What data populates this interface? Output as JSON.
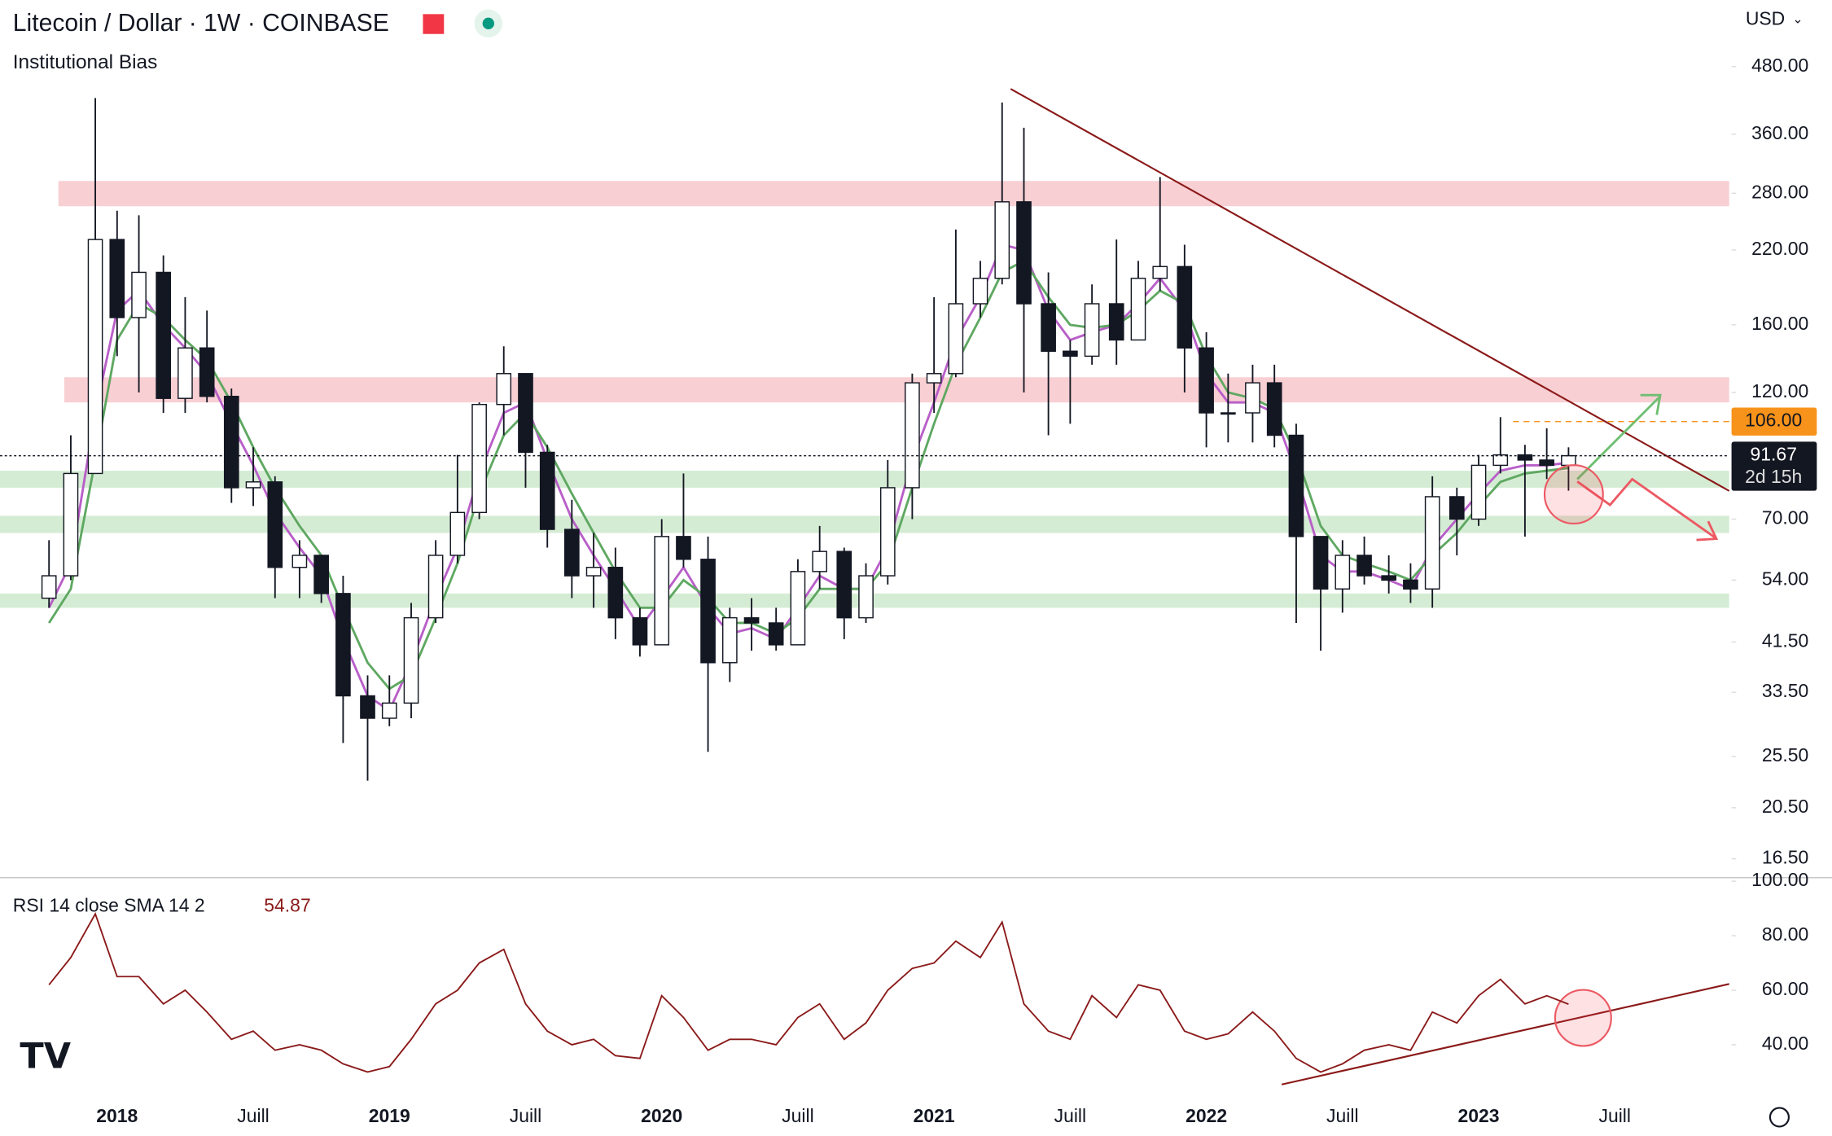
{
  "chart_data": {
    "type": "candlestick",
    "title": "Litecoin / Dollar · 1W · COINBASE",
    "subtitle": "Institutional Bias",
    "currency": "USD",
    "x": [
      2017.75,
      2017.83,
      2017.92,
      2018.0,
      2018.08,
      2018.17,
      2018.25,
      2018.33,
      2018.42,
      2018.5,
      2018.58,
      2018.67,
      2018.75,
      2018.83,
      2018.92,
      2019.0,
      2019.08,
      2019.17,
      2019.25,
      2019.33,
      2019.42,
      2019.5,
      2019.58,
      2019.67,
      2019.75,
      2019.83,
      2019.92,
      2020.0,
      2020.08,
      2020.17,
      2020.25,
      2020.33,
      2020.42,
      2020.5,
      2020.58,
      2020.67,
      2020.75,
      2020.83,
      2020.92,
      2021.0,
      2021.08,
      2021.17,
      2021.25,
      2021.33,
      2021.42,
      2021.5,
      2021.58,
      2021.67,
      2021.75,
      2021.83,
      2021.92,
      2022.0,
      2022.08,
      2022.17,
      2022.25,
      2022.33,
      2022.42,
      2022.5,
      2022.58,
      2022.67,
      2022.75,
      2022.83,
      2022.92,
      2023.0,
      2023.08,
      2023.17,
      2023.25,
      2023.33
    ],
    "open": [
      50,
      55,
      85,
      230,
      165,
      200,
      117,
      145,
      118,
      80,
      82,
      57,
      60,
      51,
      33,
      30,
      32,
      46,
      60,
      72,
      114,
      130,
      93,
      67,
      55,
      57,
      46,
      41,
      65,
      59,
      38,
      46,
      45,
      41,
      56,
      61,
      46,
      55,
      80,
      125,
      130,
      175,
      195,
      270,
      175,
      143,
      140,
      175,
      150,
      195,
      205,
      145,
      110,
      110,
      125,
      100,
      65,
      52,
      60,
      55,
      54,
      52,
      77,
      70,
      88,
      92,
      90,
      88
    ],
    "high": [
      64,
      100,
      420,
      260,
      255,
      215,
      180,
      170,
      122,
      95,
      84,
      64,
      60,
      55,
      36,
      36,
      49,
      64,
      92,
      115,
      146,
      126,
      96,
      76,
      66,
      62,
      48,
      70,
      85,
      65,
      48,
      50,
      48,
      59,
      68,
      62,
      58,
      90,
      130,
      180,
      240,
      210,
      412,
      370,
      200,
      150,
      190,
      230,
      210,
      300,
      225,
      155,
      130,
      135,
      135,
      105,
      65,
      64,
      65,
      60,
      58,
      84,
      80,
      92,
      108,
      96,
      103,
      95
    ],
    "low": [
      48,
      54,
      85,
      140,
      120,
      110,
      110,
      115,
      75,
      74,
      50,
      50,
      49,
      27,
      23,
      29,
      30,
      45,
      58,
      70,
      100,
      80,
      62,
      50,
      48,
      42,
      39,
      41,
      57,
      26,
      35,
      40,
      40,
      41,
      52,
      42,
      45,
      53,
      70,
      110,
      128,
      165,
      190,
      120,
      100,
      105,
      135,
      135,
      150,
      185,
      120,
      95,
      97,
      97,
      95,
      45,
      40,
      47,
      53,
      51,
      49,
      48,
      60,
      68,
      85,
      65,
      83,
      79
    ],
    "close": [
      55,
      85,
      230,
      165,
      200,
      117,
      145,
      118,
      80,
      82,
      57,
      60,
      51,
      33,
      30,
      32,
      46,
      60,
      72,
      114,
      130,
      93,
      67,
      55,
      57,
      46,
      41,
      65,
      59,
      38,
      46,
      45,
      41,
      56,
      61,
      46,
      55,
      80,
      125,
      130,
      175,
      195,
      270,
      175,
      143,
      140,
      175,
      150,
      195,
      205,
      145,
      110,
      110,
      125,
      100,
      65,
      52,
      60,
      55,
      54,
      52,
      77,
      70,
      88,
      92,
      90,
      88,
      91.67
    ],
    "color_up": "#ffffff",
    "color_down": "#131722",
    "overlays": [
      {
        "color": "#b95fc9",
        "values": [
          48,
          58,
          110,
          170,
          185,
          160,
          145,
          130,
          105,
          88,
          72,
          62,
          55,
          42,
          33,
          31,
          38,
          50,
          62,
          85,
          110,
          115,
          90,
          70,
          60,
          52,
          44,
          50,
          57,
          48,
          43,
          44,
          42,
          48,
          55,
          52,
          52,
          62,
          90,
          115,
          150,
          180,
          225,
          220,
          170,
          150,
          155,
          160,
          175,
          195,
          170,
          130,
          115,
          115,
          110,
          85,
          60,
          56,
          56,
          54,
          52,
          62,
          70,
          78,
          86,
          88,
          88,
          89
        ]
      },
      {
        "color": "#5fa862",
        "values": [
          45,
          52,
          90,
          150,
          175,
          165,
          150,
          138,
          115,
          95,
          80,
          68,
          60,
          48,
          38,
          34,
          36,
          46,
          58,
          78,
          100,
          110,
          95,
          78,
          66,
          56,
          48,
          48,
          54,
          50,
          45,
          45,
          43,
          46,
          52,
          52,
          52,
          58,
          80,
          105,
          135,
          165,
          200,
          210,
          180,
          160,
          158,
          160,
          170,
          185,
          175,
          140,
          120,
          117,
          112,
          92,
          68,
          60,
          58,
          56,
          54,
          60,
          66,
          74,
          82,
          85,
          86,
          87
        ]
      }
    ],
    "xlim": [
      2017.57,
      2023.92
    ],
    "xticks": [
      2018,
      {
        "value": 2018.5,
        "label": "Juill"
      },
      2019,
      {
        "value": 2019.5,
        "label": "Juill"
      },
      2020,
      {
        "value": 2020.5,
        "label": "Juill"
      },
      2021,
      {
        "value": 2021.5,
        "label": "Juill"
      },
      2022,
      {
        "value": 2022.5,
        "label": "Juill"
      },
      2023,
      {
        "value": 2023.5,
        "label": "Juill"
      }
    ],
    "log_scale": true,
    "ylim": [
      15.3,
      637
    ],
    "yticks": [
      {
        "value": 480,
        "label": "480.00"
      },
      {
        "value": 360,
        "label": "360.00"
      },
      {
        "value": 280,
        "label": "280.00"
      },
      {
        "value": 220,
        "label": "220.00"
      },
      {
        "value": 160,
        "label": "160.00"
      },
      {
        "value": 120,
        "label": "120.00"
      },
      {
        "value": 70,
        "label": "70.00"
      },
      {
        "value": 54,
        "label": "54.00"
      },
      {
        "value": 41.5,
        "label": "41.50"
      },
      {
        "value": 33.5,
        "label": "33.50"
      },
      {
        "value": 25.5,
        "label": "25.50"
      },
      {
        "value": 20.5,
        "label": "20.50"
      },
      {
        "value": 16.5,
        "label": "16.50"
      }
    ],
    "zones": [
      {
        "low": 265,
        "high": 295,
        "color": "#f8cfd3"
      },
      {
        "low": 115,
        "high": 128,
        "color": "#f8cfd3"
      },
      {
        "low": 80,
        "high": 86,
        "color": "#d5ecd4"
      },
      {
        "low": 66,
        "high": 71,
        "color": "#d5ecd4"
      },
      {
        "low": 48,
        "high": 51,
        "color": "#d5ecd4"
      }
    ],
    "level": {
      "value": 106,
      "label": "106.00",
      "color": "#f7931a"
    },
    "countdown": "2d 15h",
    "rsi": {
      "title": "RSI 14 close SMA 14 2",
      "color": "#8b1a1a",
      "ylim": [
        25,
        100
      ],
      "yticks": [
        {
          "value": 40,
          "label": "40.00"
        },
        {
          "value": 60,
          "label": "60.00"
        },
        {
          "value": 80,
          "label": "80.00"
        },
        {
          "value": 100,
          "label": "100.00"
        }
      ],
      "values": [
        62,
        72,
        88,
        65,
        65,
        55,
        60,
        52,
        42,
        45,
        38,
        40,
        38,
        33,
        30,
        32,
        42,
        55,
        60,
        70,
        75,
        55,
        45,
        40,
        42,
        36,
        35,
        58,
        50,
        38,
        42,
        42,
        40,
        50,
        55,
        42,
        48,
        60,
        68,
        70,
        78,
        72,
        85,
        55,
        45,
        42,
        58,
        50,
        62,
        60,
        45,
        42,
        44,
        52,
        45,
        35,
        30,
        33,
        38,
        40,
        38,
        52,
        48,
        58,
        64,
        55,
        58,
        54.87
      ]
    }
  }
}
